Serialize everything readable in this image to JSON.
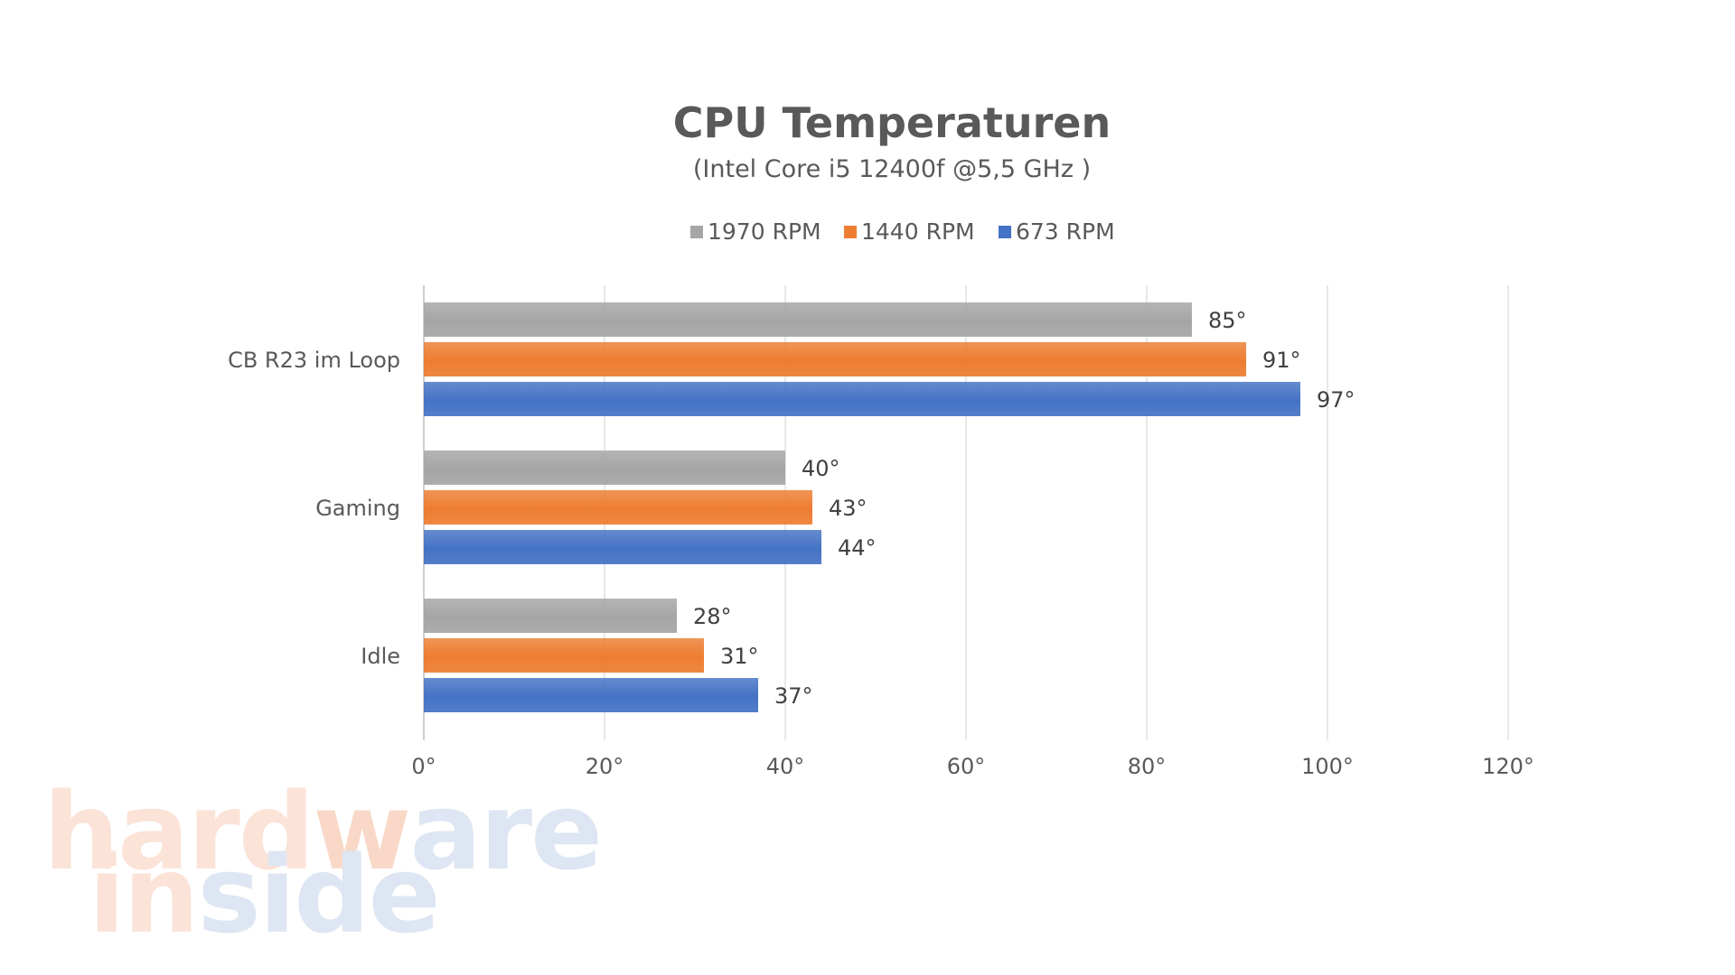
{
  "chart_data": {
    "type": "bar",
    "orientation": "horizontal",
    "title": "CPU Temperaturen",
    "subtitle": "(Intel Core i5 12400f @5,5 GHz )",
    "categories": [
      "CB R23 im Loop",
      "Gaming",
      "Idle"
    ],
    "series": [
      {
        "name": "1970 RPM",
        "color": "#a5a5a5",
        "values": [
          85,
          40,
          28
        ],
        "labels": [
          "85°",
          "40°",
          "28°"
        ]
      },
      {
        "name": "1440 RPM",
        "color": "#ed7d31",
        "values": [
          91,
          43,
          31
        ],
        "labels": [
          "91°",
          "43°",
          "31°"
        ]
      },
      {
        "name": "673 RPM",
        "color": "#4472c4",
        "values": [
          97,
          44,
          37
        ],
        "labels": [
          "97°",
          "44°",
          "37°"
        ]
      }
    ],
    "xlim": [
      0,
      120
    ],
    "xticks": [
      0,
      20,
      40,
      60,
      80,
      100,
      120
    ],
    "xtick_labels": [
      "0°",
      "20°",
      "40°",
      "60°",
      "80°",
      "100°",
      "120°"
    ],
    "grid": true,
    "legend_position": "top",
    "xlabel": "",
    "ylabel": ""
  },
  "watermark": {
    "line1": {
      "parts": [
        {
          "text": "hard",
          "color": "#fbe3d8"
        },
        {
          "text": "w",
          "color": "#f9d8c8"
        },
        {
          "text": "are",
          "color": "#dde6f2"
        }
      ]
    },
    "line2": {
      "parts": [
        {
          "text": "in",
          "color": "#fbe3d8"
        },
        {
          "text": "side",
          "color": "#dde6f2"
        }
      ]
    }
  }
}
